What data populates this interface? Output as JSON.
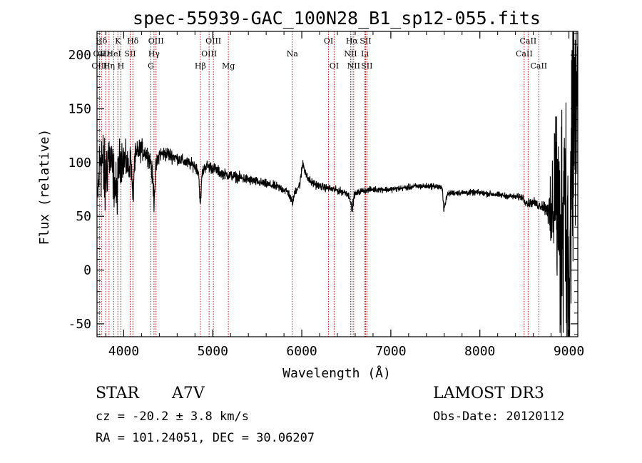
{
  "chart_data": {
    "type": "line",
    "title": "spec-55939-GAC_100N28_B1_sp12-055.fits",
    "xlabel": "Wavelength (Å)",
    "ylabel": "Flux (relative)",
    "xlim": [
      3700,
      9100
    ],
    "ylim": [
      -62,
      222
    ],
    "xticks": [
      4000,
      5000,
      6000,
      7000,
      8000,
      9000
    ],
    "xtick_labels": [
      "4000",
      "5000",
      "6000",
      "7000",
      "8000",
      "9000"
    ],
    "yticks": [
      -50,
      0,
      50,
      100,
      150,
      200
    ],
    "ytick_labels": [
      "-50",
      "0",
      "50",
      "100",
      "150",
      "200"
    ],
    "line_markers": [
      {
        "label": "Hδ",
        "wavelength": 3750,
        "row": 0
      },
      {
        "label": "K",
        "wavelength": 3934,
        "row": 0
      },
      {
        "label": "Hδ",
        "wavelength": 4102,
        "row": 0
      },
      {
        "label": "OIII",
        "wavelength": 4363,
        "row": 0
      },
      {
        "label": "OIII",
        "wavelength": 5007,
        "row": 0
      },
      {
        "label": "OI",
        "wavelength": 6300,
        "row": 0
      },
      {
        "label": "Hα",
        "wavelength": 6563,
        "row": 0
      },
      {
        "label": "SII",
        "wavelength": 6716,
        "row": 0
      },
      {
        "label": "CaII",
        "wavelength": 8542,
        "row": 0
      },
      {
        "label": "OII",
        "wavelength": 3727,
        "row": 1
      },
      {
        "label": "Hε",
        "wavelength": 3797,
        "row": 1
      },
      {
        "label": "HeI",
        "wavelength": 3889,
        "row": 1
      },
      {
        "label": "SII",
        "wavelength": 4072,
        "row": 1
      },
      {
        "label": "Hγ",
        "wavelength": 4340,
        "row": 1
      },
      {
        "label": "OIII",
        "wavelength": 4959,
        "row": 1
      },
      {
        "label": "Na",
        "wavelength": 5893,
        "row": 1
      },
      {
        "label": "NII",
        "wavelength": 6548,
        "row": 1
      },
      {
        "label": "Li",
        "wavelength": 6708,
        "row": 1
      },
      {
        "label": "CaII",
        "wavelength": 8498,
        "row": 1
      },
      {
        "label": "OIII",
        "wavelength": 3727,
        "row": 2
      },
      {
        "label": "Hη",
        "wavelength": 3835,
        "row": 2
      },
      {
        "label": "H",
        "wavelength": 3968,
        "row": 2
      },
      {
        "label": "G",
        "wavelength": 4305,
        "row": 2
      },
      {
        "label": "Hβ",
        "wavelength": 4861,
        "row": 2
      },
      {
        "label": "Mg",
        "wavelength": 5175,
        "row": 2
      },
      {
        "label": "OI",
        "wavelength": 6363,
        "row": 2
      },
      {
        "label": "NII",
        "wavelength": 6583,
        "row": 2
      },
      {
        "label": "SII",
        "wavelength": 6731,
        "row": 2
      },
      {
        "label": "CaII",
        "wavelength": 8662,
        "row": 2
      }
    ],
    "series": [
      {
        "name": "flux",
        "anchors_x": [
          3700,
          3720,
          3740,
          3760,
          3790,
          3830,
          3880,
          3920,
          3950,
          3980,
          4020,
          4060,
          4080,
          4102,
          4120,
          4160,
          4200,
          4260,
          4300,
          4330,
          4340,
          4360,
          4400,
          4500,
          4600,
          4700,
          4800,
          4840,
          4861,
          4880,
          4920,
          5000,
          5100,
          5200,
          5300,
          5400,
          5500,
          5600,
          5700,
          5800,
          5850,
          5893,
          5930,
          5980,
          6010,
          6030,
          6060,
          6100,
          6200,
          6300,
          6400,
          6500,
          6540,
          6563,
          6590,
          6650,
          6700,
          6800,
          6900,
          7000,
          7100,
          7200,
          7300,
          7400,
          7500,
          7580,
          7595,
          7610,
          7640,
          7700,
          7800,
          7900,
          8000,
          8100,
          8200,
          8300,
          8400,
          8480,
          8500,
          8542,
          8600,
          8662,
          8700,
          8760,
          8800,
          8850,
          8900,
          8950,
          9000,
          9050
        ],
        "anchors_y": [
          60,
          85,
          110,
          100,
          80,
          110,
          90,
          70,
          100,
          105,
          100,
          95,
          105,
          65,
          100,
          110,
          112,
          108,
          102,
          80,
          65,
          95,
          108,
          108,
          104,
          100,
          97,
          92,
          60,
          90,
          97,
          95,
          90,
          88,
          86,
          84,
          82,
          80,
          78,
          75,
          72,
          62,
          74,
          80,
          100,
          95,
          86,
          82,
          78,
          76,
          74,
          72,
          68,
          55,
          70,
          73,
          74,
          75,
          75,
          75,
          76,
          77,
          78,
          78,
          78,
          76,
          56,
          62,
          71,
          72,
          72,
          72,
          72,
          71,
          70,
          69,
          68,
          68,
          65,
          62,
          63,
          60,
          60,
          57,
          40,
          90,
          20,
          100,
          -40,
          150
        ],
        "noise": [
          12,
          20,
          30,
          30,
          25,
          20,
          18,
          18,
          15,
          14,
          12,
          10,
          10,
          12,
          10,
          8,
          7,
          6,
          6,
          8,
          8,
          6,
          5,
          5,
          4,
          4,
          4,
          4,
          4,
          4,
          4,
          4,
          3.5,
          3.5,
          3.5,
          3.5,
          3,
          3,
          3,
          3,
          3,
          3,
          3,
          3,
          4,
          4,
          3,
          3,
          2.5,
          2.5,
          2.5,
          2.5,
          2.5,
          3,
          2.5,
          2,
          2,
          2,
          2,
          2,
          2,
          2,
          2,
          2,
          2,
          2,
          2,
          2,
          2,
          2,
          2,
          2,
          2,
          2,
          2,
          2,
          2,
          2.5,
          2.5,
          3,
          3,
          3,
          4,
          6,
          30,
          60,
          80,
          90,
          100,
          110
        ]
      }
    ]
  },
  "info": {
    "object_class": "STAR",
    "subclass": "A7V",
    "survey": "LAMOST DR3",
    "redshift": "cz = -20.2 ± 3.8 km/s",
    "obs_date": "Obs-Date: 20120112",
    "coords": "RA = 101.24051, DEC =  30.06207"
  },
  "colors": {
    "spectrum": "#000000",
    "marker_line": "#cc0000",
    "axes": "#000000"
  }
}
